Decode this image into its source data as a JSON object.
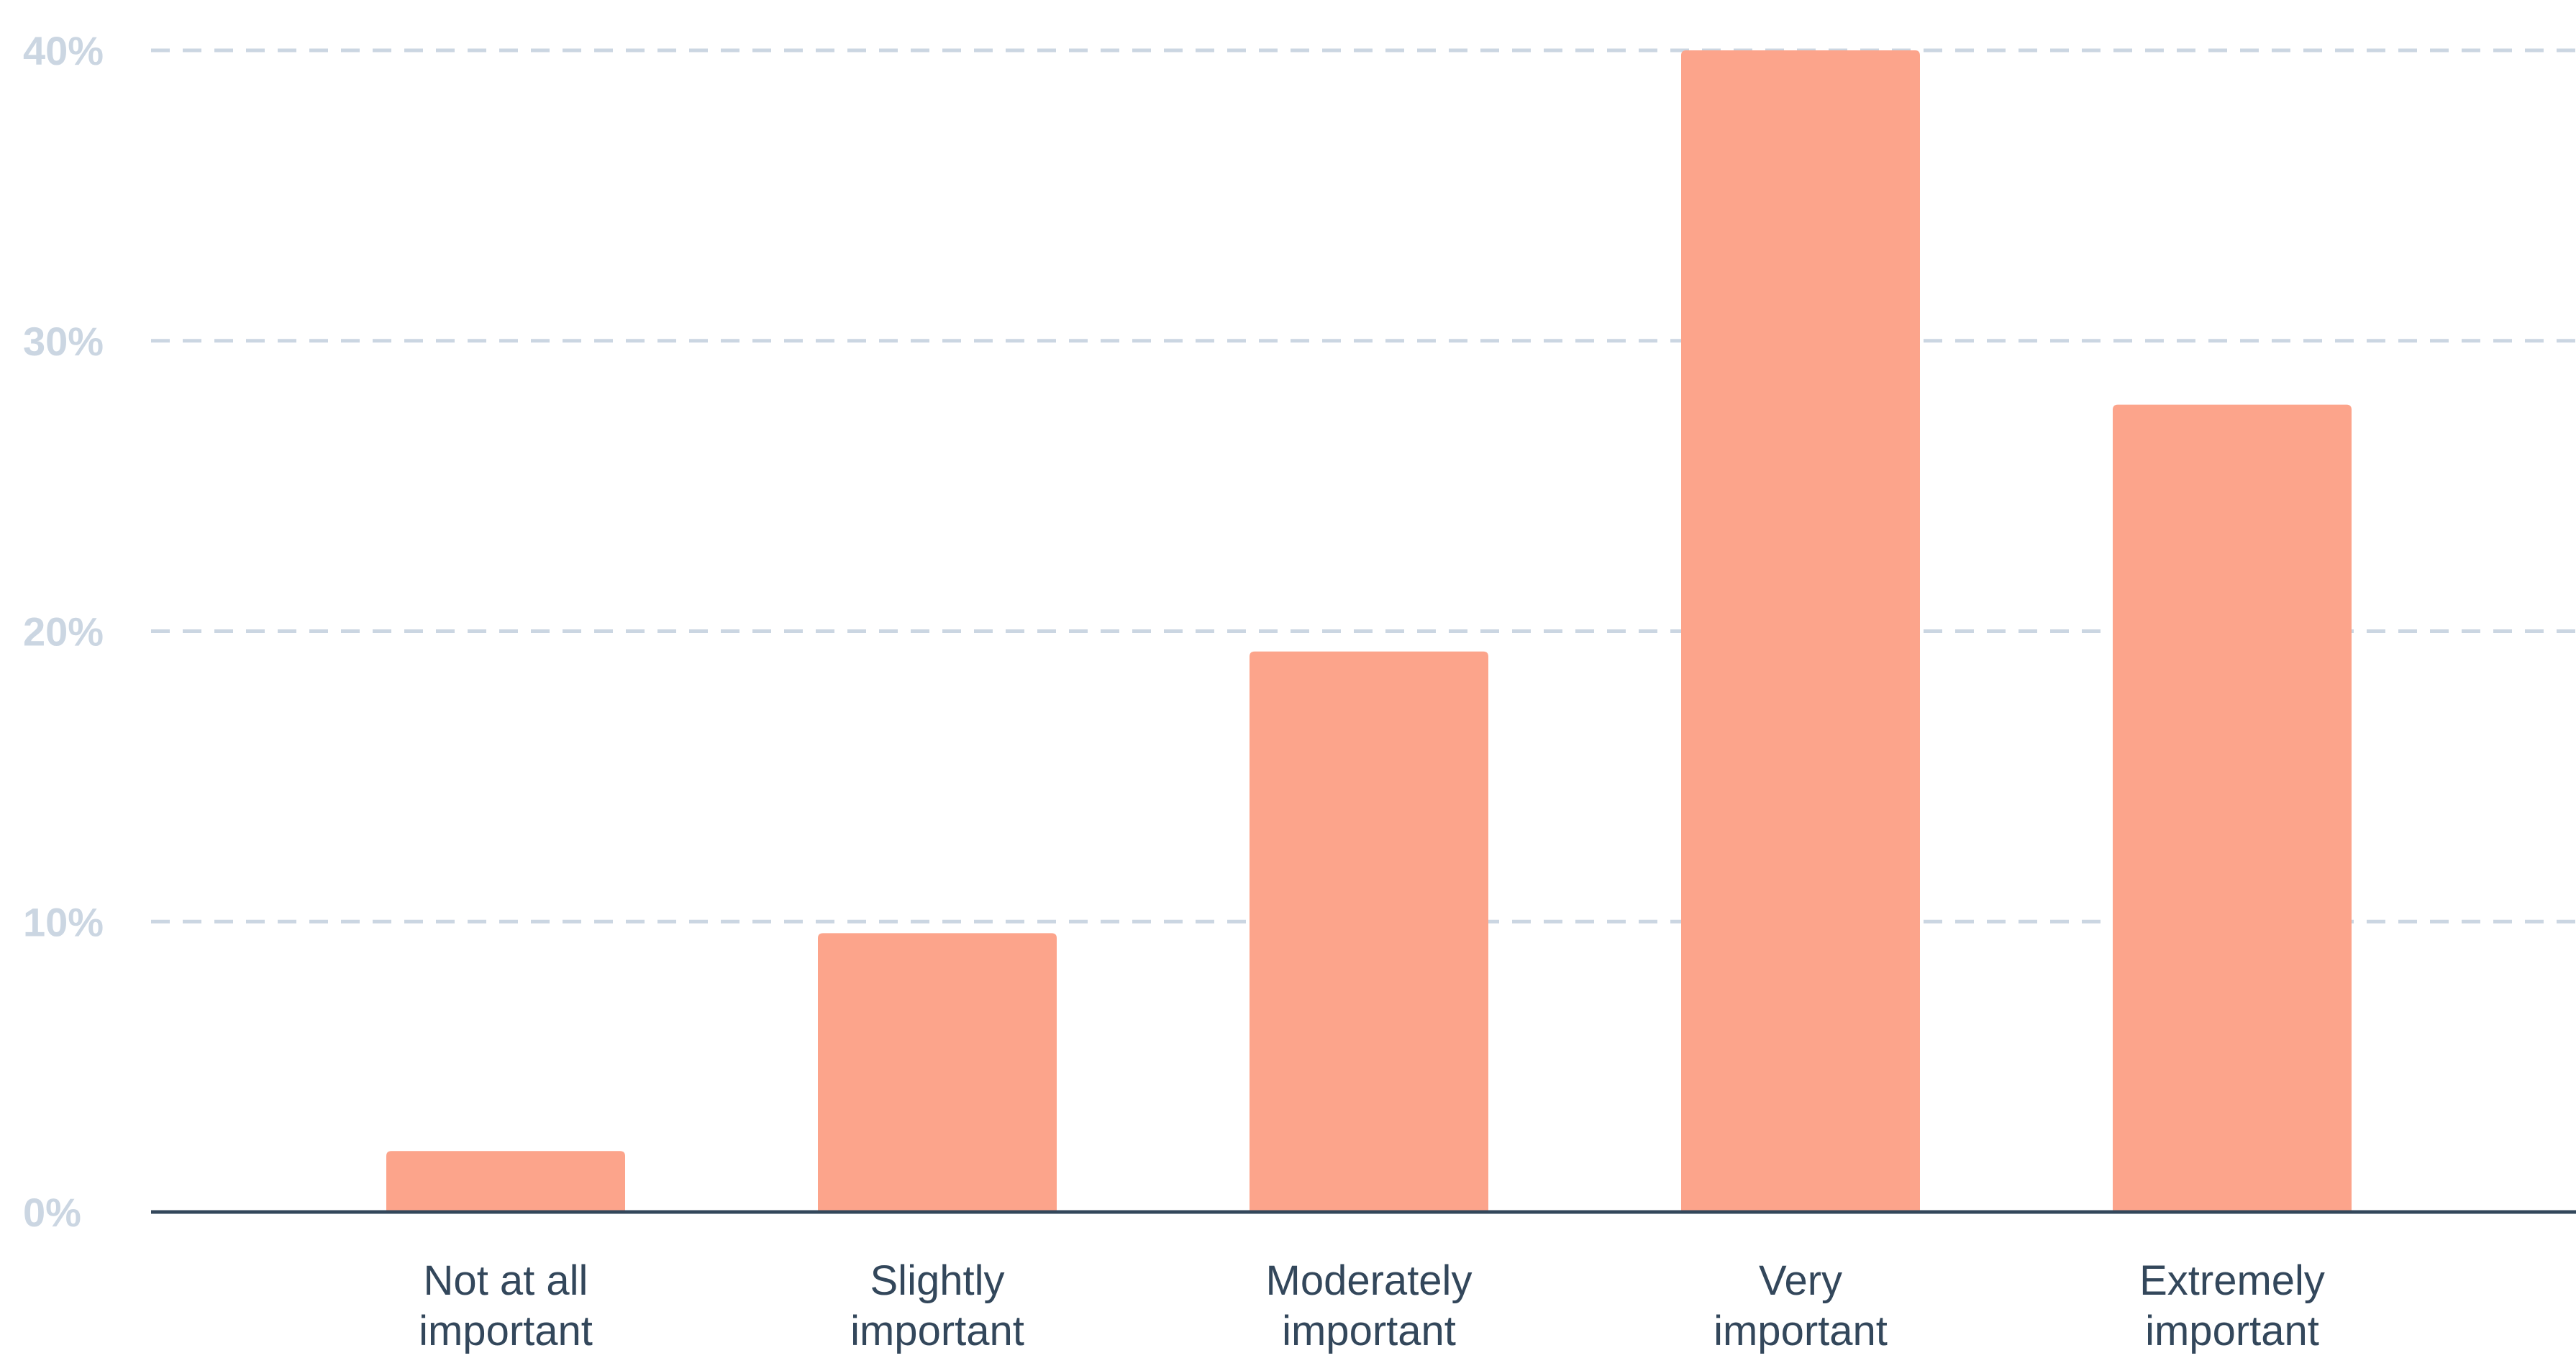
{
  "chart_data": {
    "type": "bar",
    "categories": [
      [
        "Not at all",
        "important"
      ],
      [
        "Slightly",
        "important"
      ],
      [
        "Moderately",
        "important"
      ],
      [
        "Very",
        "important"
      ],
      [
        "Extremely",
        "important"
      ]
    ],
    "values": [
      2.1,
      9.6,
      19.3,
      40.0,
      27.8
    ],
    "ylim": [
      0,
      40
    ],
    "yticks": [
      0,
      10,
      20,
      30,
      40
    ],
    "ytick_labels": [
      "0%",
      "10%",
      "20%",
      "30%",
      "40%"
    ],
    "grid": true,
    "title": "",
    "xlabel": "",
    "ylabel": "",
    "colors": {
      "bar": "#fca48b",
      "grid": "#cbd6e2",
      "axis": "#33475b",
      "tick_text": "#cbd6e2",
      "category_text": "#33475b"
    }
  }
}
